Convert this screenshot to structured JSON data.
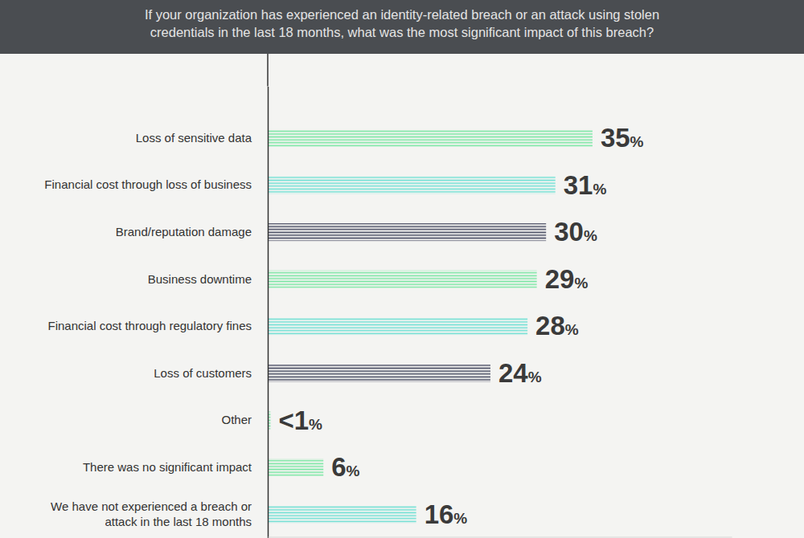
{
  "chart_data": {
    "type": "bar",
    "orientation": "horizontal",
    "title": "If your organization has experienced an identity-related breach or an attack using stolen\ncredentials in the last 18 months, what was the most significant impact of this breach?",
    "categories": [
      "Loss of sensitive data",
      "Financial cost through loss of business",
      "Brand/reputation damage",
      "Business downtime",
      "Financial cost through regulatory fines",
      "Loss of customers",
      "Other",
      "There was no significant impact",
      "We have not experienced a breach or\nattack in the last 18 months"
    ],
    "values": [
      35,
      31,
      30,
      29,
      28,
      24,
      0.3,
      6,
      16
    ],
    "value_labels": [
      "35%",
      "31%",
      "30%",
      "29%",
      "28%",
      "24%",
      "<1%",
      "6%",
      "16%"
    ],
    "colors": [
      "#74e6a0",
      "#6adfd3",
      "#3e4259",
      "#74e6a0",
      "#6adfd3",
      "#3e4259",
      "#74e6a0",
      "#74e6a0",
      "#6adfd3"
    ],
    "xlim": [
      0,
      50
    ],
    "tick_labels": "y",
    "data_labels": true,
    "grid": false
  }
}
